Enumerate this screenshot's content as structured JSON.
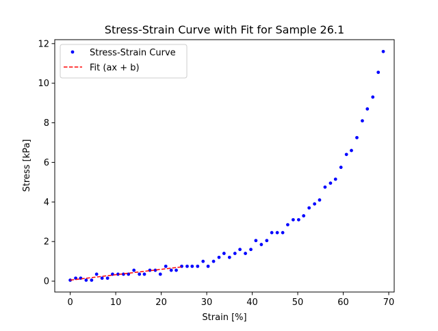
{
  "chart_data": {
    "type": "scatter",
    "title": "Stress-Strain Curve with Fit for Sample 26.1",
    "xlabel": "Strain [%]",
    "ylabel": "Stress [kPa]",
    "xlim": [
      -3.4,
      71.2
    ],
    "ylim": [
      -0.55,
      12.2
    ],
    "xticks": [
      0,
      10,
      20,
      30,
      40,
      50,
      60,
      70
    ],
    "yticks": [
      0,
      2,
      4,
      6,
      8,
      10,
      12
    ],
    "grid": false,
    "legend_position": "top-left",
    "series": [
      {
        "name": "Stress-Strain Curve",
        "kind": "scatter",
        "color": "#0000ff",
        "points": [
          [
            0.0,
            0.05
          ],
          [
            1.2,
            0.15
          ],
          [
            2.3,
            0.15
          ],
          [
            3.5,
            0.05
          ],
          [
            4.7,
            0.05
          ],
          [
            5.8,
            0.35
          ],
          [
            7.0,
            0.15
          ],
          [
            8.2,
            0.15
          ],
          [
            9.3,
            0.35
          ],
          [
            10.5,
            0.35
          ],
          [
            11.7,
            0.35
          ],
          [
            12.8,
            0.35
          ],
          [
            14.0,
            0.55
          ],
          [
            15.2,
            0.35
          ],
          [
            16.3,
            0.35
          ],
          [
            17.5,
            0.55
          ],
          [
            18.7,
            0.55
          ],
          [
            19.8,
            0.35
          ],
          [
            21.0,
            0.75
          ],
          [
            22.2,
            0.55
          ],
          [
            23.3,
            0.55
          ],
          [
            24.5,
            0.75
          ],
          [
            25.7,
            0.75
          ],
          [
            26.8,
            0.75
          ],
          [
            28.0,
            0.75
          ],
          [
            29.2,
            1.0
          ],
          [
            30.3,
            0.75
          ],
          [
            31.5,
            1.0
          ],
          [
            32.7,
            1.2
          ],
          [
            33.8,
            1.4
          ],
          [
            35.0,
            1.2
          ],
          [
            36.2,
            1.4
          ],
          [
            37.3,
            1.6
          ],
          [
            38.5,
            1.4
          ],
          [
            39.7,
            1.6
          ],
          [
            40.8,
            2.05
          ],
          [
            42.0,
            1.85
          ],
          [
            43.2,
            2.05
          ],
          [
            44.3,
            2.45
          ],
          [
            45.5,
            2.45
          ],
          [
            46.7,
            2.45
          ],
          [
            47.8,
            2.85
          ],
          [
            49.0,
            3.1
          ],
          [
            50.2,
            3.1
          ],
          [
            51.3,
            3.3
          ],
          [
            52.5,
            3.7
          ],
          [
            53.7,
            3.9
          ],
          [
            54.8,
            4.1
          ],
          [
            56.0,
            4.75
          ],
          [
            57.2,
            4.95
          ],
          [
            58.3,
            5.15
          ],
          [
            59.5,
            5.75
          ],
          [
            60.7,
            6.4
          ],
          [
            61.8,
            6.6
          ],
          [
            63.0,
            7.25
          ],
          [
            64.2,
            8.1
          ],
          [
            65.3,
            8.7
          ],
          [
            66.5,
            9.3
          ],
          [
            67.7,
            10.55
          ],
          [
            68.8,
            11.6
          ]
        ]
      },
      {
        "name": "Fit (ax + b)",
        "kind": "line",
        "style": "dashed",
        "color": "#ff0000",
        "points": [
          [
            0.0,
            0.05
          ],
          [
            24.5,
            0.72
          ]
        ]
      }
    ]
  }
}
